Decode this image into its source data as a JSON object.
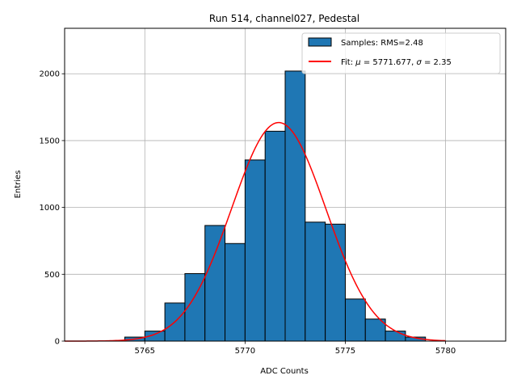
{
  "chart_data": {
    "type": "bar",
    "title": "Run 514, channel027, Pedestal",
    "xlabel": "ADC Counts",
    "ylabel": "Entries",
    "xlim": [
      5761,
      5783
    ],
    "ylim": [
      0,
      2340
    ],
    "xticks": [
      5765,
      5770,
      5775,
      5780
    ],
    "yticks": [
      0,
      500,
      1000,
      1500,
      2000
    ],
    "grid": true,
    "legend_position": "top-right",
    "bin_width": 1,
    "bins": [
      {
        "x": 5764.5,
        "value": 30
      },
      {
        "x": 5765.5,
        "value": 75
      },
      {
        "x": 5766.5,
        "value": 285
      },
      {
        "x": 5767.5,
        "value": 505
      },
      {
        "x": 5768.5,
        "value": 865
      },
      {
        "x": 5769.5,
        "value": 730
      },
      {
        "x": 5770.5,
        "value": 1355
      },
      {
        "x": 5771.5,
        "value": 1570
      },
      {
        "x": 5772.5,
        "value": 2020
      },
      {
        "x": 5773.5,
        "value": 890
      },
      {
        "x": 5774.5,
        "value": 875
      },
      {
        "x": 5775.5,
        "value": 315
      },
      {
        "x": 5776.5,
        "value": 165
      },
      {
        "x": 5777.5,
        "value": 75
      },
      {
        "x": 5778.5,
        "value": 30
      }
    ],
    "fit": {
      "mu": 5771.677,
      "sigma": 2.35,
      "amplitude": 1635,
      "x_range": [
        5761,
        5780
      ]
    },
    "legend": [
      {
        "label": "Samples: RMS=2.48",
        "kind": "patch"
      },
      {
        "label_prefix": "Fit: ",
        "mu_symbol": "μ",
        "mu_text": " = 5771.677, ",
        "sigma_symbol": "σ",
        "sigma_text": " = 2.35",
        "kind": "line"
      }
    ],
    "colors": {
      "bar_fill": "#1f77b4",
      "bar_edge": "#000000",
      "fit_line": "#ff0000",
      "grid": "#b0b0b0"
    }
  }
}
